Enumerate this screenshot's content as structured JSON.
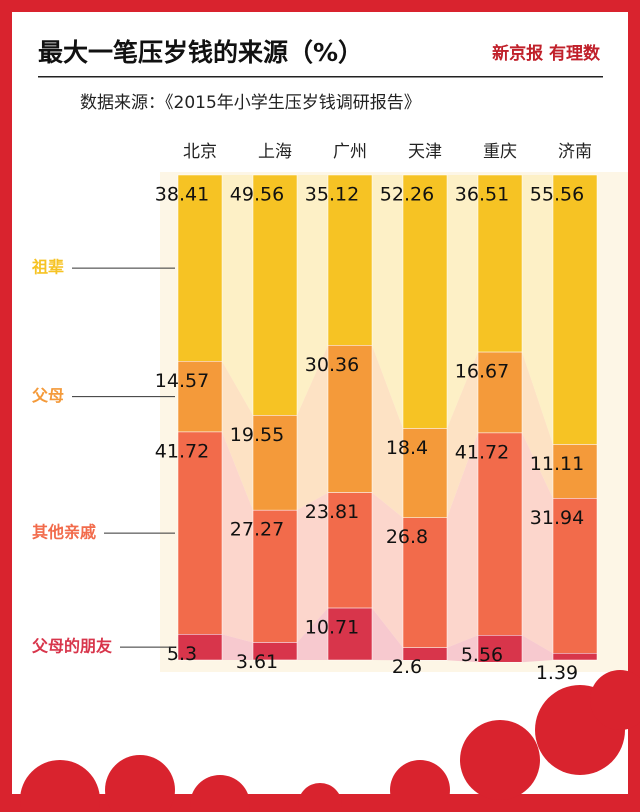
{
  "brand": "新京报 有理数",
  "chart_data": {
    "type": "bar",
    "stacked": true,
    "title": "最大一笔压岁钱的来源（%）",
    "subtitle": "数据来源：《2015年小学生压岁钱调研报告》",
    "categories": [
      "北京",
      "上海",
      "广州",
      "天津",
      "重庆",
      "济南"
    ],
    "ylim": [
      0,
      100
    ],
    "series": [
      {
        "name": "祖辈",
        "color": "#f6c324",
        "light": "#fdf0c6",
        "values": [
          38.41,
          49.56,
          35.12,
          52.26,
          36.51,
          55.56
        ]
      },
      {
        "name": "父母",
        "color": "#f49a3a",
        "light": "#fde2c4",
        "values": [
          14.57,
          19.55,
          30.36,
          18.4,
          16.67,
          11.11
        ]
      },
      {
        "name": "其他亲戚",
        "color": "#f26b4b",
        "light": "#fcd6cc",
        "values": [
          41.72,
          27.27,
          23.81,
          26.8,
          41.72,
          31.94
        ]
      },
      {
        "name": "父母的朋友",
        "color": "#d8354b",
        "light": "#f7c9cf",
        "values": [
          5.3,
          3.61,
          10.71,
          2.6,
          5.56,
          1.39
        ]
      }
    ]
  }
}
